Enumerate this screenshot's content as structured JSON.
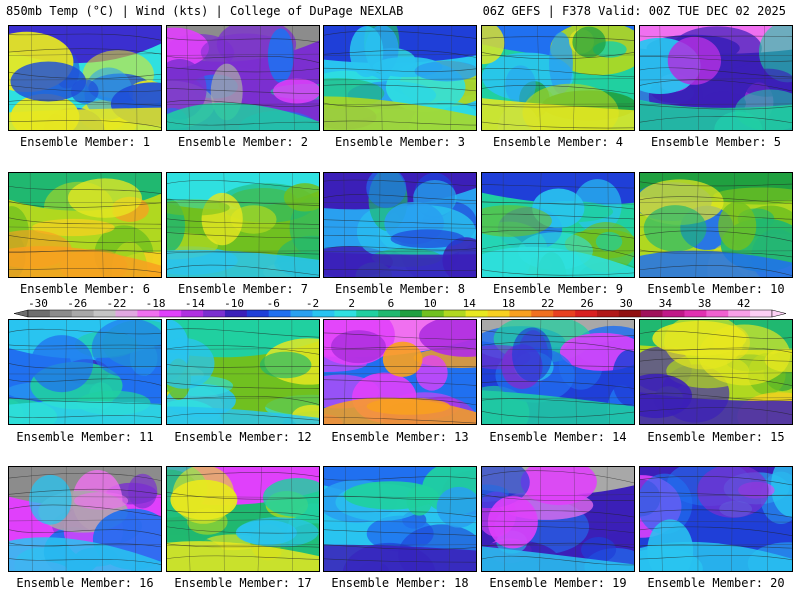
{
  "header": {
    "left": "850mb Temp (°C) | Wind (kts) | College of DuPage NEXLAB",
    "right": "06Z GEFS | F378 Valid: 00Z TUE DEC 02 2025"
  },
  "colorbar": {
    "labels": [
      "-30",
      "-26",
      "-22",
      "-18",
      "-14",
      "-10",
      "-6",
      "-2",
      "2",
      "6",
      "10",
      "14",
      "18",
      "22",
      "26",
      "30",
      "34",
      "38",
      "42"
    ],
    "colors": [
      "#6e6e6e",
      "#8c8c8c",
      "#a8a8a8",
      "#c4c4c4",
      "#e0a8e0",
      "#f070f0",
      "#e040fb",
      "#b030e0",
      "#7b2fd0",
      "#3b1fb8",
      "#1f3fd8",
      "#2070f0",
      "#29a0f0",
      "#29c4f0",
      "#2fe0e0",
      "#20d0a0",
      "#20b870",
      "#20a040",
      "#70c020",
      "#b0d820",
      "#e8e820",
      "#f8d020",
      "#f8a020",
      "#f07020",
      "#e84020",
      "#d82020",
      "#b01818",
      "#901010",
      "#a0105a",
      "#c01888",
      "#e030b0",
      "#f060d0",
      "#f8a0e8",
      "#fcd0f4"
    ]
  },
  "members": [
    {
      "caption": "Ensemble Member: 1",
      "palette": [
        "#1f4fd8",
        "#29a0f0",
        "#2fe0e0",
        "#20b870",
        "#b0d820",
        "#e8e820"
      ],
      "top": "#3b2fd0"
    },
    {
      "caption": "Ensemble Member: 2",
      "palette": [
        "#a8a8a8",
        "#e040fb",
        "#7b2fd0",
        "#2070f0",
        "#29c4f0",
        "#20d0a0"
      ],
      "top": "#8c8c8c"
    },
    {
      "caption": "Ensemble Member: 3",
      "palette": [
        "#2070f0",
        "#29a0f0",
        "#29c4f0",
        "#20b870",
        "#2fe0e0",
        "#b0d820"
      ],
      "top": "#1f3fd8"
    },
    {
      "caption": "Ensemble Member: 4",
      "palette": [
        "#29a0f0",
        "#29c4f0",
        "#20d0a0",
        "#20a040",
        "#b0d820",
        "#e8e820"
      ],
      "top": "#2070f0"
    },
    {
      "caption": "Ensemble Member: 5",
      "palette": [
        "#e040fb",
        "#b030e0",
        "#3b1fb8",
        "#2070f0",
        "#29c4f0",
        "#20d0a0"
      ],
      "top": "#f070f0"
    },
    {
      "caption": "Ensemble Member: 6",
      "palette": [
        "#20a040",
        "#70c020",
        "#b0d820",
        "#e8e820",
        "#f8d020",
        "#f8a020"
      ],
      "top": "#20b870"
    },
    {
      "caption": "Ensemble Member: 7",
      "palette": [
        "#20b870",
        "#20a040",
        "#70c020",
        "#b0d820",
        "#e8e820",
        "#29c4f0"
      ],
      "top": "#2fe0e0"
    },
    {
      "caption": "Ensemble Member: 8",
      "palette": [
        "#1f3fd8",
        "#2070f0",
        "#29a0f0",
        "#29c4f0",
        "#20b870",
        "#3b1fb8"
      ],
      "top": "#3b1fb8"
    },
    {
      "caption": "Ensemble Member: 9",
      "palette": [
        "#2070f0",
        "#29c4f0",
        "#20d0a0",
        "#20b870",
        "#70c020",
        "#2fe0e0"
      ],
      "top": "#1f3fd8"
    },
    {
      "caption": "Ensemble Member: 10",
      "palette": [
        "#20b870",
        "#70c020",
        "#b0d820",
        "#e8e820",
        "#29c4f0",
        "#2070f0"
      ],
      "top": "#20a040"
    },
    {
      "caption": "Ensemble Member: 11",
      "palette": [
        "#29c4f0",
        "#29a0f0",
        "#2070f0",
        "#3b1fb8",
        "#20d0a0",
        "#2fe0e0"
      ],
      "top": "#29c4f0"
    },
    {
      "caption": "Ensemble Member: 12",
      "palette": [
        "#2fe0e0",
        "#20b870",
        "#70c020",
        "#b0d820",
        "#e8e820",
        "#29c4f0"
      ],
      "top": "#20d0a0"
    },
    {
      "caption": "Ensemble Member: 13",
      "palette": [
        "#e040fb",
        "#b030e0",
        "#2070f0",
        "#20b870",
        "#e8e820",
        "#f8a020"
      ],
      "top": "#f070f0"
    },
    {
      "caption": "Ensemble Member: 14",
      "palette": [
        "#e040fb",
        "#7b2fd0",
        "#1f3fd8",
        "#2070f0",
        "#29c4f0",
        "#20d0a0"
      ],
      "top": "#a8a8a8"
    },
    {
      "caption": "Ensemble Member: 15",
      "palette": [
        "#20a040",
        "#70c020",
        "#b0d820",
        "#e8e820",
        "#f8d020",
        "#3b1fb8"
      ],
      "top": "#20b870"
    },
    {
      "caption": "Ensemble Member: 16",
      "palette": [
        "#a8a8a8",
        "#f070f0",
        "#e040fb",
        "#7b2fd0",
        "#2070f0",
        "#29c4f0"
      ],
      "top": "#8c8c8c"
    },
    {
      "caption": "Ensemble Member: 17",
      "palette": [
        "#29c4f0",
        "#20d0a0",
        "#20b870",
        "#70c020",
        "#b0d820",
        "#e8e820"
      ],
      "top": "#e040fb"
    },
    {
      "caption": "Ensemble Member: 18",
      "palette": [
        "#2070f0",
        "#29a0f0",
        "#29c4f0",
        "#20d0a0",
        "#1f3fd8",
        "#3b1fb8"
      ],
      "top": "#2070f0"
    },
    {
      "caption": "Ensemble Member: 19",
      "palette": [
        "#f070f0",
        "#e040fb",
        "#3b1fb8",
        "#1f3fd8",
        "#2070f0",
        "#29c4f0"
      ],
      "top": "#a8a8a8"
    },
    {
      "caption": "Ensemble Member: 20",
      "palette": [
        "#e040fb",
        "#7b2fd0",
        "#1f3fd8",
        "#2070f0",
        "#29a0f0",
        "#29c4f0"
      ],
      "top": "#3b1fb8"
    }
  ]
}
